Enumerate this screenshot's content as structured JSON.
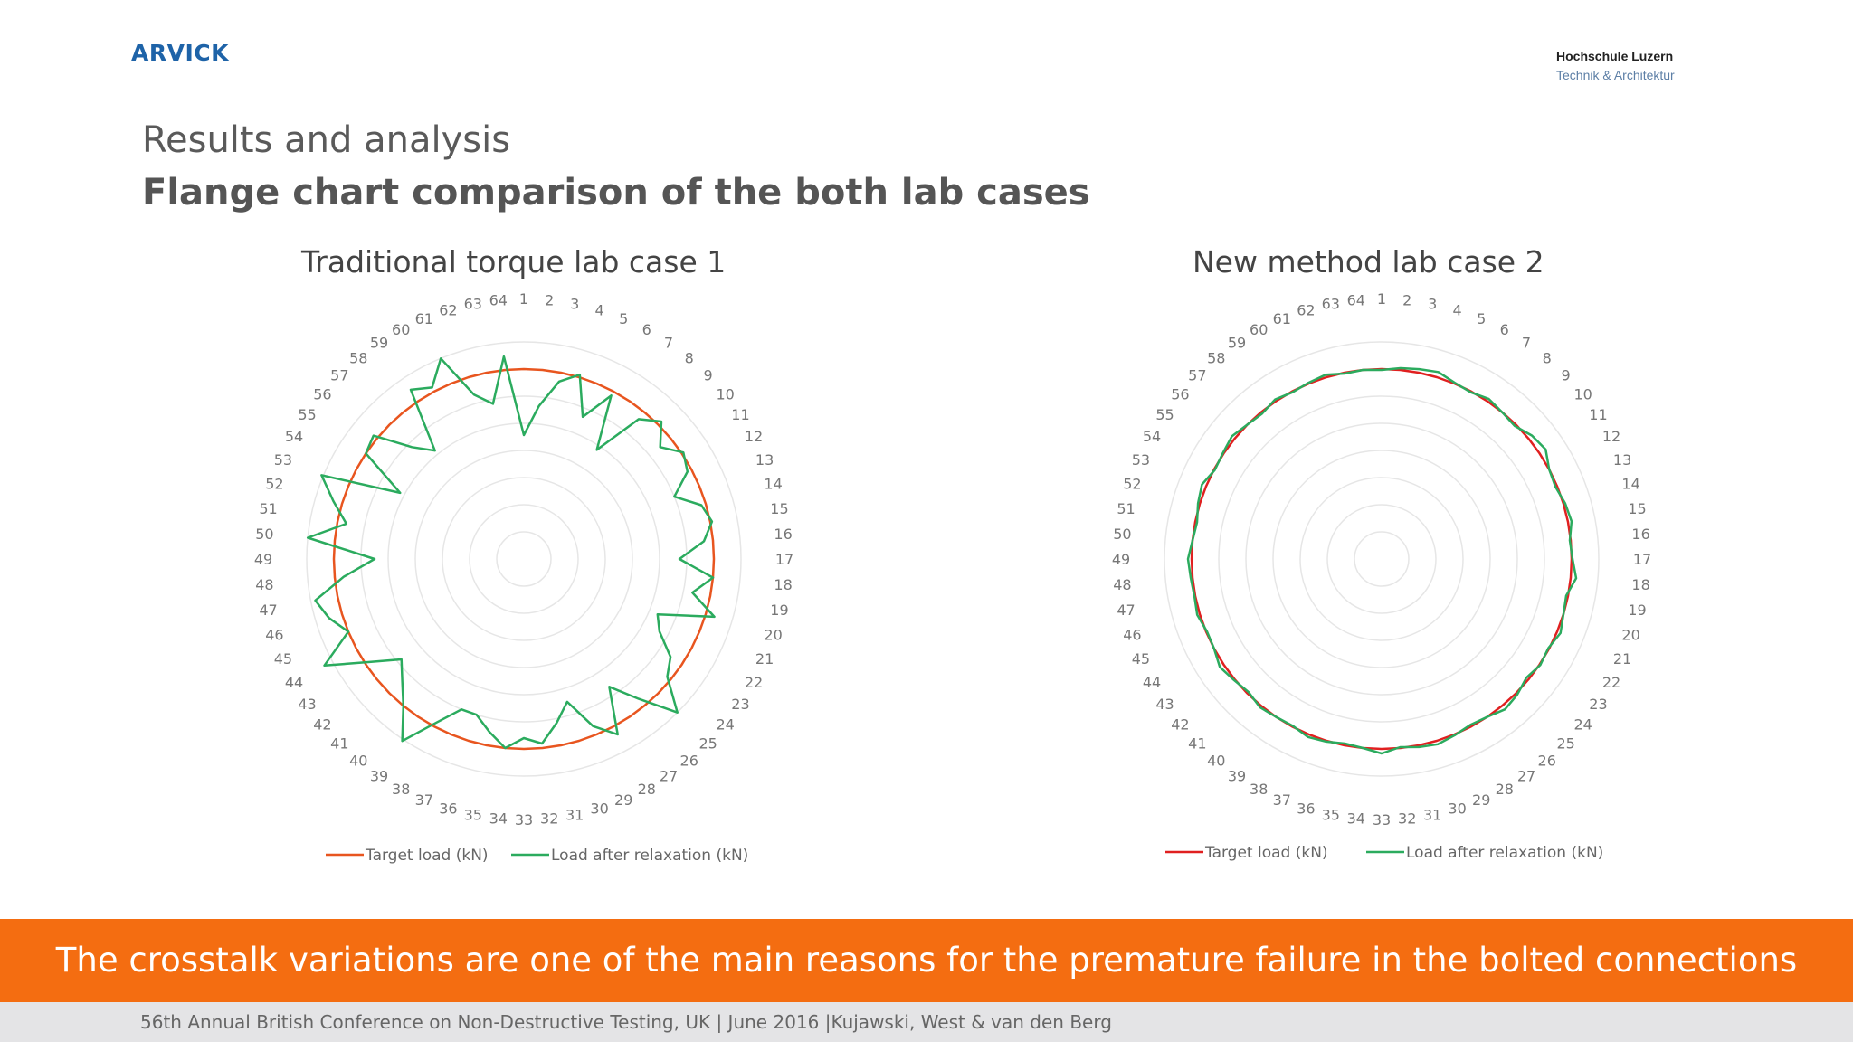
{
  "header": {
    "logo_text": "ARVICK",
    "university_name": "Hochschule Luzern",
    "university_department": "Technik & Architektur"
  },
  "slide": {
    "title": "Results and analysis",
    "subtitle": "Flange chart comparison of the both lab cases"
  },
  "banner": {
    "text": "The crosstalk variations are one of the main reasons for the premature failure in the bolted connections"
  },
  "footer": {
    "text": "56th Annual British Conference on Non-Destructive Testing, UK | June 2016 |Kujawski, West & van den Berg"
  },
  "colors": {
    "target": "#e8551f",
    "target_case2": "#e02020",
    "relaxation": "#2bab5e",
    "grid": "#e6e6e6",
    "banner": "#f46d11"
  },
  "chart_data": [
    {
      "type": "radar",
      "title": "Traditional torque lab case 1",
      "categories": [
        "1",
        "2",
        "3",
        "4",
        "5",
        "6",
        "7",
        "8",
        "9",
        "10",
        "11",
        "12",
        "13",
        "14",
        "15",
        "16",
        "17",
        "18",
        "19",
        "20",
        "21",
        "22",
        "23",
        "24",
        "25",
        "26",
        "27",
        "28",
        "29",
        "30",
        "31",
        "32",
        "33",
        "34",
        "35",
        "36",
        "37",
        "38",
        "39",
        "40",
        "41",
        "42",
        "43",
        "44",
        "45",
        "46",
        "47",
        "48",
        "49",
        "50",
        "51",
        "52",
        "53",
        "54",
        "55",
        "56",
        "57",
        "58",
        "59",
        "60",
        "61",
        "62",
        "63",
        "64"
      ],
      "series": [
        {
          "name": "Target load (kN)",
          "values": [
            210,
            210,
            210,
            210,
            210,
            210,
            210,
            210,
            210,
            210,
            210,
            210,
            210,
            210,
            210,
            210,
            210,
            210,
            210,
            210,
            210,
            210,
            210,
            210,
            210,
            210,
            210,
            210,
            210,
            210,
            210,
            210,
            210,
            210,
            210,
            210,
            210,
            210,
            210,
            210,
            210,
            210,
            210,
            210,
            210,
            210,
            210,
            210,
            210,
            210,
            210,
            210,
            210,
            210,
            210,
            210,
            210,
            210,
            210,
            210,
            210,
            210,
            210,
            210
          ]
        },
        {
          "name": "Load after relaxation (kN)",
          "values": [
            137,
            170,
            200,
            213,
            170,
            205,
            145,
            200,
            215,
            195,
            212,
            205,
            180,
            205,
            212,
            200,
            172,
            210,
            190,
            220,
            160,
            170,
            195,
            205,
            240,
            200,
            170,
            220,
            200,
            165,
            185,
            205,
            198,
            210,
            195,
            180,
            180,
            205,
            242,
            210,
            190,
            175,
            205,
            250,
            210,
            225,
            235,
            200,
            165,
            240,
            200,
            220,
            242,
            155,
            210,
            215,
            175,
            155,
            225,
            215,
            240,
            190,
            175,
            225
          ]
        }
      ],
      "rlim": [
        0,
        240
      ],
      "grid_rings": 8,
      "legend_position": "bottom"
    },
    {
      "type": "radar",
      "title": "New method lab case 2",
      "categories": [
        "1",
        "2",
        "3",
        "4",
        "5",
        "6",
        "7",
        "8",
        "9",
        "10",
        "11",
        "12",
        "13",
        "14",
        "15",
        "16",
        "17",
        "18",
        "19",
        "20",
        "21",
        "22",
        "23",
        "24",
        "25",
        "26",
        "27",
        "28",
        "29",
        "30",
        "31",
        "32",
        "33",
        "34",
        "35",
        "36",
        "37",
        "38",
        "39",
        "40",
        "41",
        "42",
        "43",
        "44",
        "45",
        "46",
        "47",
        "48",
        "49",
        "50",
        "51",
        "52",
        "53",
        "54",
        "55",
        "56",
        "57",
        "58",
        "59",
        "60",
        "61",
        "62",
        "63",
        "64"
      ],
      "series": [
        {
          "name": "Target load (kN)",
          "values": [
            210,
            210,
            210,
            210,
            210,
            210,
            210,
            210,
            210,
            210,
            210,
            210,
            210,
            210,
            210,
            210,
            210,
            210,
            210,
            210,
            210,
            210,
            210,
            210,
            210,
            210,
            210,
            210,
            210,
            210,
            210,
            210,
            210,
            210,
            210,
            210,
            210,
            210,
            210,
            210,
            210,
            210,
            210,
            210,
            210,
            210,
            210,
            210,
            210,
            210,
            210,
            210,
            210,
            210,
            210,
            210,
            210,
            210,
            210,
            210,
            210,
            210,
            210,
            210
          ]
        },
        {
          "name": "Load after relaxation (kN)",
          "values": [
            209,
            212,
            214,
            216,
            211,
            209,
            213,
            210,
            208,
            215,
            218,
            210,
            208,
            212,
            214,
            209,
            211,
            216,
            208,
            210,
            214,
            209,
            211,
            207,
            212,
            215,
            210,
            208,
            211,
            214,
            212,
            209,
            215,
            210,
            208,
            211,
            213,
            209,
            210,
            212,
            208,
            211,
            215,
            210,
            209,
            213,
            211,
            212,
            214,
            210,
            208,
            212,
            215,
            209,
            211,
            214,
            210,
            208,
            212,
            209,
            211,
            213,
            209,
            210
          ]
        }
      ],
      "rlim": [
        0,
        240
      ],
      "grid_rings": 8,
      "legend_position": "bottom"
    }
  ]
}
